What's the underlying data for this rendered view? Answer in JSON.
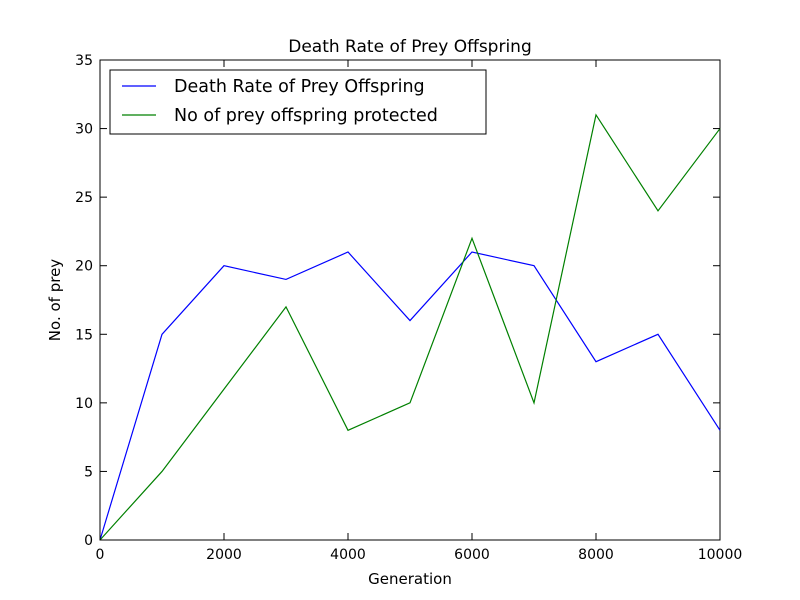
{
  "chart_data": {
    "type": "line",
    "title": "Death Rate of Prey Offspring",
    "xlabel": "Generation",
    "ylabel": "No. of prey",
    "xlim": [
      0,
      10000
    ],
    "ylim": [
      0,
      35
    ],
    "x_ticks": [
      "0",
      "2000",
      "4000",
      "6000",
      "8000",
      "10000"
    ],
    "y_ticks": [
      "0",
      "5",
      "10",
      "15",
      "20",
      "25",
      "30",
      "35"
    ],
    "grid": false,
    "legend_position": "top-left",
    "x": [
      0,
      1000,
      2000,
      3000,
      4000,
      5000,
      6000,
      7000,
      8000,
      9000,
      10000
    ],
    "series": [
      {
        "name": "Death Rate of Prey Offspring",
        "color": "#0000ff",
        "values": [
          0,
          15,
          20,
          19,
          21,
          16,
          21,
          20,
          13,
          15,
          8
        ]
      },
      {
        "name": "No of prey offspring protected",
        "color": "#008000",
        "values": [
          0,
          5,
          11,
          17,
          8,
          10,
          22,
          10,
          31,
          24,
          30
        ]
      }
    ]
  }
}
